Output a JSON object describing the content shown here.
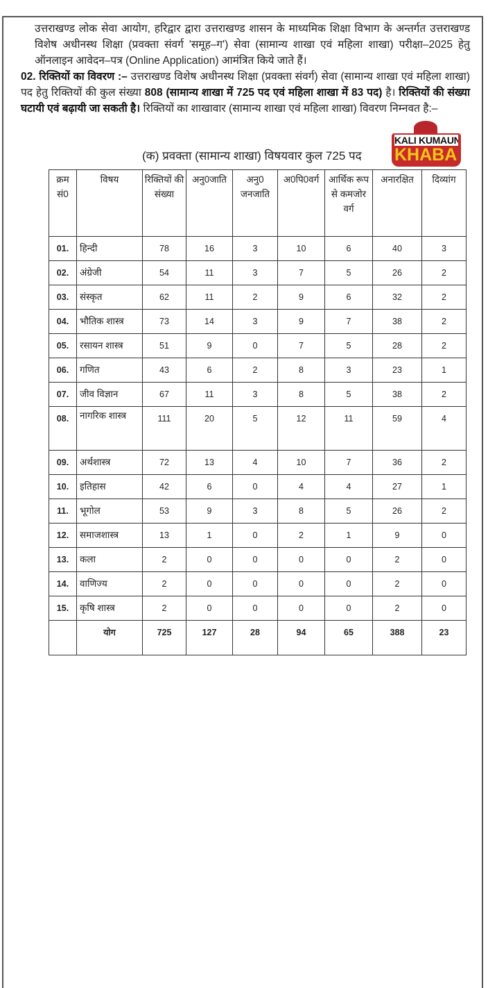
{
  "intro": {
    "paragraph1": "उत्तराखण्ड लोक सेवा आयोग, हरिद्वार द्वारा उत्तराखण्ड शासन के माध्यमिक शिक्षा विभाग के अन्तर्गत उत्तराखण्ड विशेष अधीनस्थ शिक्षा (प्रवक्ता संवर्ग 'समूह–ग') सेवा (सामान्य शाखा एवं महिला शाखा) परीक्षा–2025 हेतु ऑनलाइन आवेदन–पत्र (Online Application) आमंत्रित किये जाते हैं।",
    "section_heading": "02. रिक्तियों का विवरण :–",
    "p2_a": " उत्तराखण्ड विशेष अधीनस्थ शिक्षा (प्रवक्ता संवर्ग) सेवा (सामान्य शाखा एवं महिला शाखा) पद हेतु रिक्तियों की कुल संख्या ",
    "p2_total": "808 (सामान्य शाखा में 725 पद एवं महिला शाखा में 83 पद)",
    "p2_b": " है। ",
    "p2_bold2": "रिक्तियों की संख्या घटायी एवं बढ़ायी जा सकती है।",
    "p2_c": " रिक्तियों का शाखावार (सामान्य शाखा एवं महिला शाखा) विवरण निम्नवत है:–"
  },
  "logo": {
    "line1": "KALI KUMAUN",
    "line2": "KHABAR"
  },
  "table": {
    "caption": "(क) प्रवक्ता (सामान्य शाखा) विषयवार कुल 725 पद",
    "headers": [
      "क्रम सं0",
      "विषय",
      "रिक्तियों की संख्या",
      "अनु0जाति",
      "अनु0 जनजाति",
      "अ0पि0वर्ग",
      "आर्थिक रूप से कमजोर वर्ग",
      "अनारक्षित",
      "दिव्यांग"
    ],
    "rows": [
      [
        "01.",
        "हिन्दी",
        "78",
        "16",
        "3",
        "10",
        "6",
        "40",
        "3"
      ],
      [
        "02.",
        "अंग्रेजी",
        "54",
        "11",
        "3",
        "7",
        "5",
        "26",
        "2"
      ],
      [
        "03.",
        "संस्कृत",
        "62",
        "11",
        "2",
        "9",
        "6",
        "32",
        "2"
      ],
      [
        "04.",
        "भौतिक शास्त्र",
        "73",
        "14",
        "3",
        "9",
        "7",
        "38",
        "2"
      ],
      [
        "05.",
        "रसायन शास्त्र",
        "51",
        "9",
        "0",
        "7",
        "5",
        "28",
        "2"
      ],
      [
        "06.",
        "गणित",
        "43",
        "6",
        "2",
        "8",
        "3",
        "23",
        "1"
      ],
      [
        "07.",
        "जीव विज्ञान",
        "67",
        "11",
        "3",
        "8",
        "5",
        "38",
        "2"
      ],
      [
        "08.",
        "नागरिक शास्त्र",
        "111",
        "20",
        "5",
        "12",
        "11",
        "59",
        "4"
      ],
      [
        "09.",
        "अर्थशास्त्र",
        "72",
        "13",
        "4",
        "10",
        "7",
        "36",
        "2"
      ],
      [
        "10.",
        "इतिहास",
        "42",
        "6",
        "0",
        "4",
        "4",
        "27",
        "1"
      ],
      [
        "11.",
        "भूगोल",
        "53",
        "9",
        "3",
        "8",
        "5",
        "26",
        "2"
      ],
      [
        "12.",
        "समाजशास्त्र",
        "13",
        "1",
        "0",
        "2",
        "1",
        "9",
        "0"
      ],
      [
        "13.",
        "कला",
        "2",
        "0",
        "0",
        "0",
        "0",
        "2",
        "0"
      ],
      [
        "14.",
        "वाणिज्य",
        "2",
        "0",
        "0",
        "0",
        "0",
        "2",
        "0"
      ],
      [
        "15.",
        "कृषि शास्त्र",
        "2",
        "0",
        "0",
        "0",
        "0",
        "2",
        "0"
      ]
    ],
    "total": [
      "",
      "योग",
      "725",
      "127",
      "28",
      "94",
      "65",
      "388",
      "23"
    ]
  }
}
